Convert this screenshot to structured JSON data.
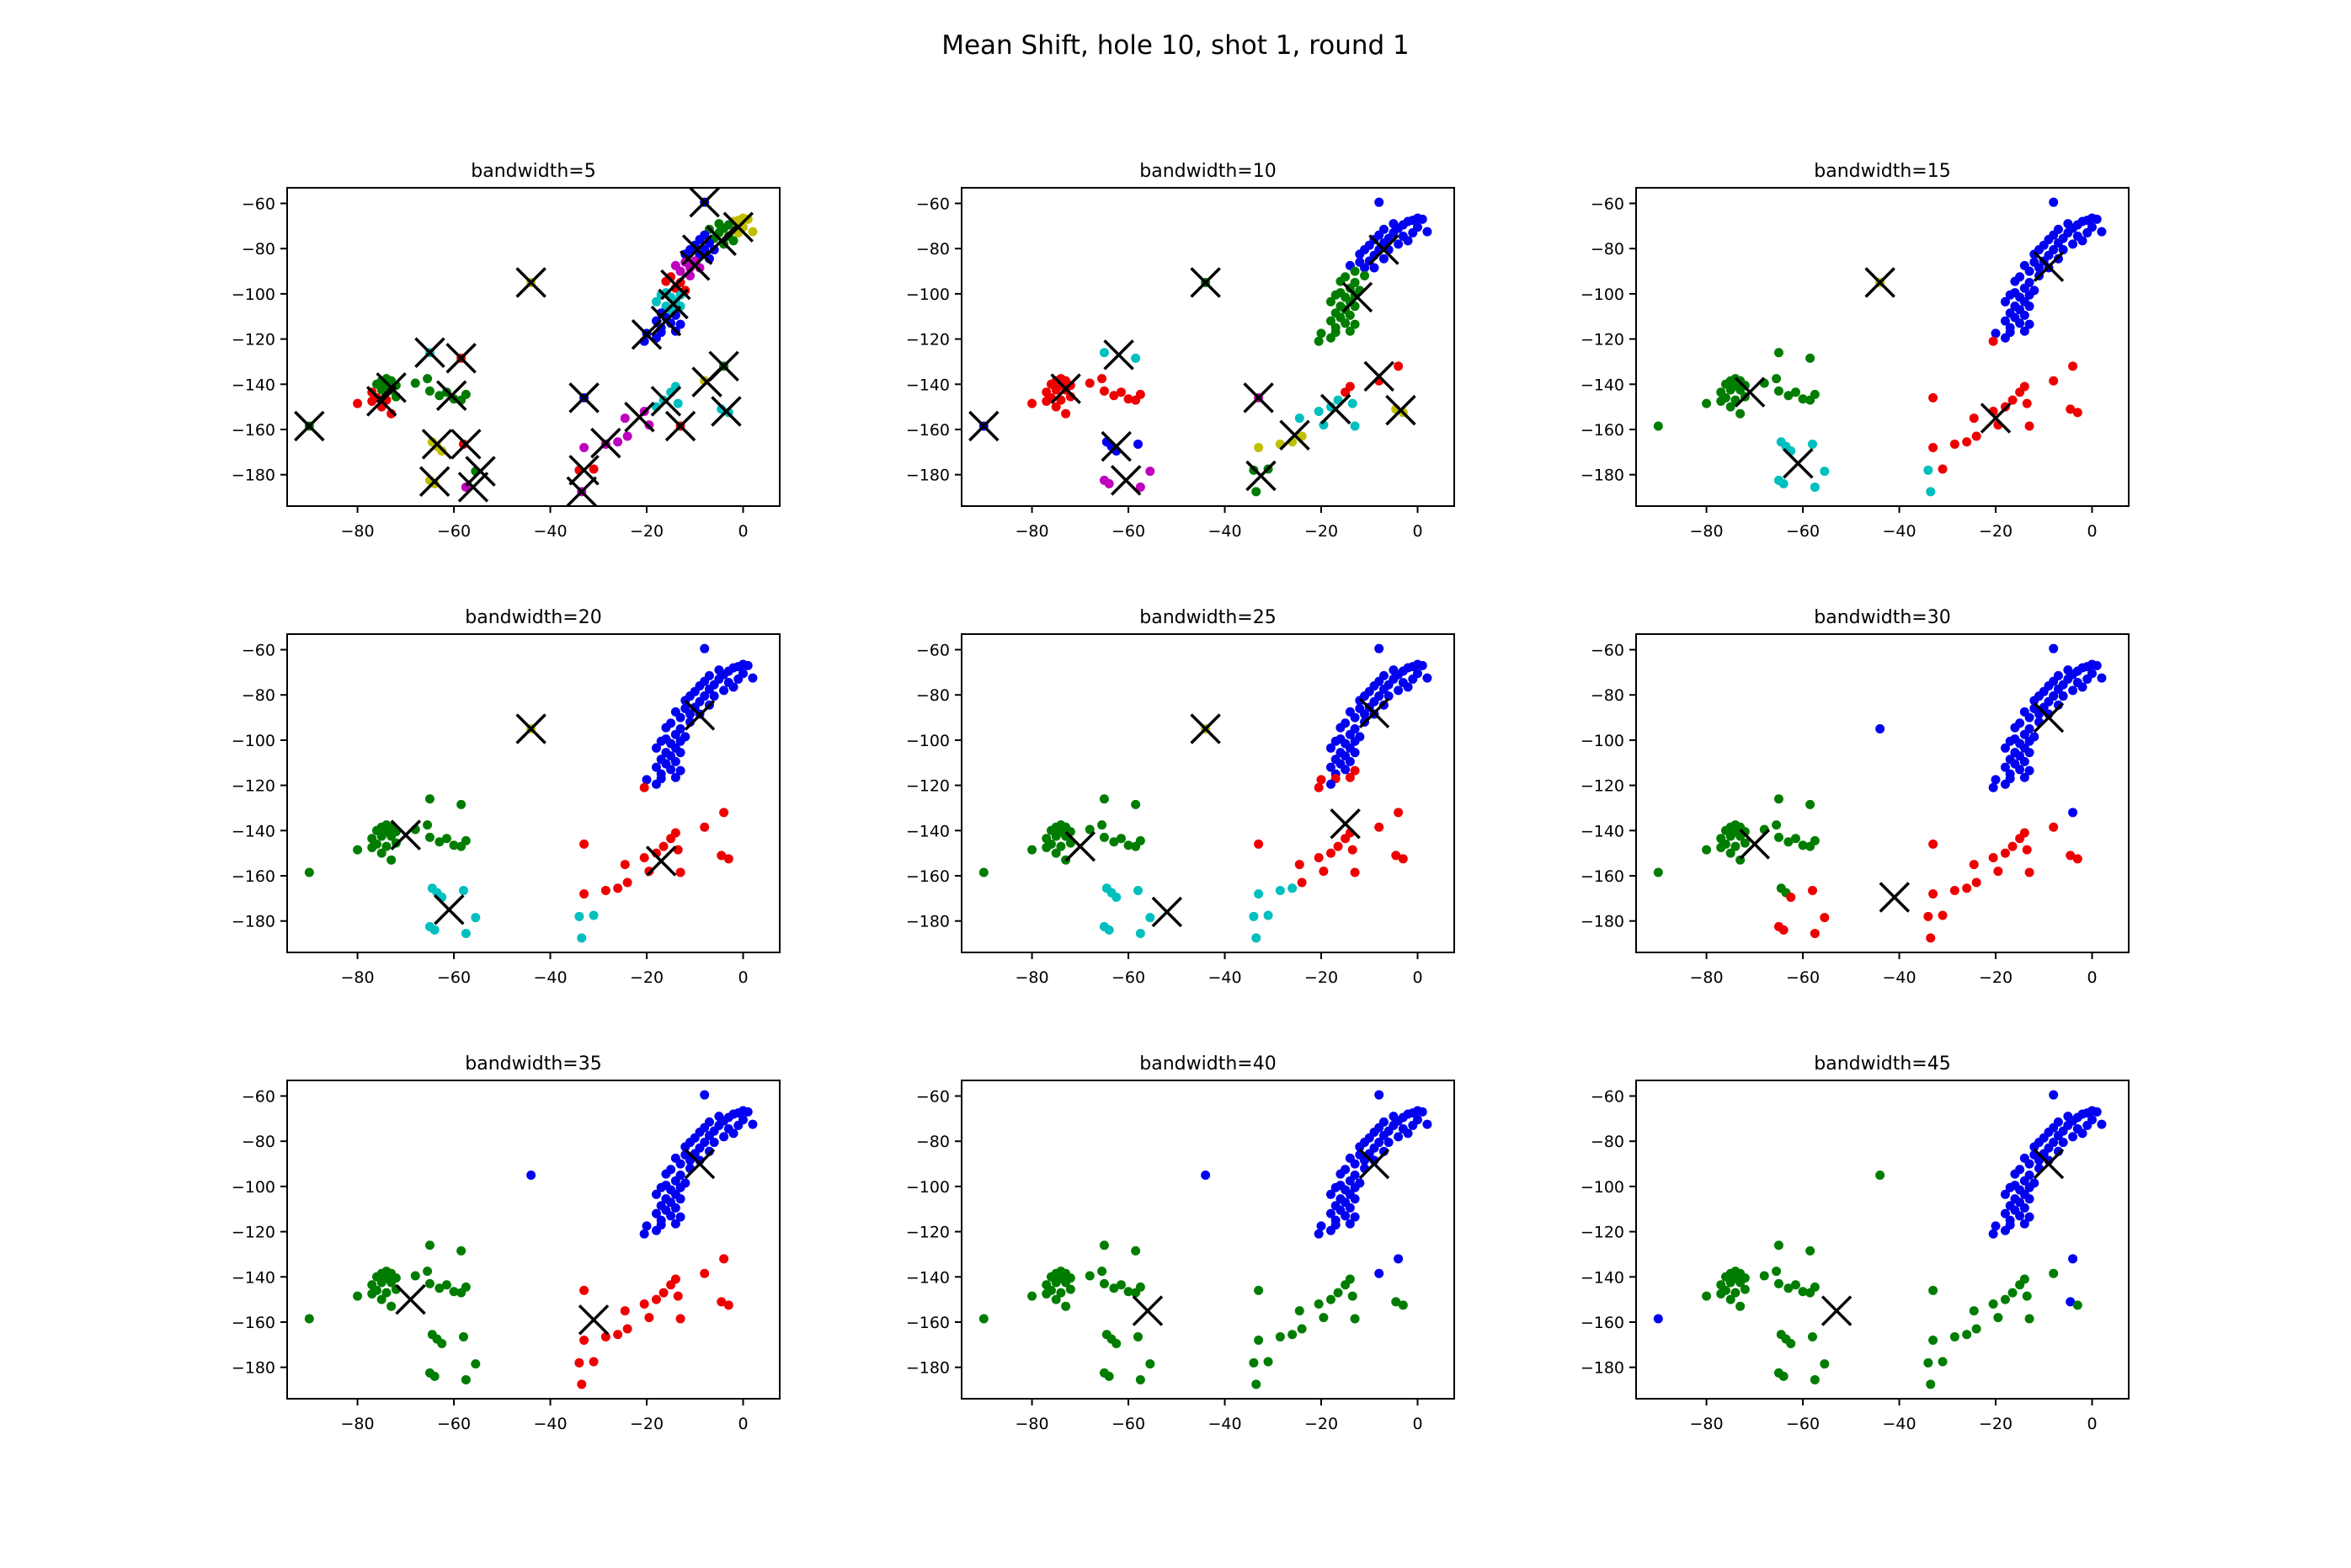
{
  "chart_data": {
    "type": "scatter",
    "title": "Mean Shift, hole 10, shot 1, round 1",
    "grid": false,
    "legend": null,
    "axes": {
      "xlim": [
        -94.6,
        7.6
      ],
      "ylim": [
        -193.9,
        -53.1
      ],
      "xticks": [
        -80,
        -60,
        -40,
        -20,
        0
      ],
      "yticks": [
        -60,
        -80,
        -100,
        -120,
        -140,
        -160,
        -180
      ]
    },
    "colors": {
      "b": "#0202f0",
      "g": "#007d00",
      "r": "#ef0000",
      "c": "#00bfbf",
      "m": "#bf00bf",
      "y": "#bfbf00",
      "center": "#000000"
    },
    "points": [
      [
        -8,
        -59.5
      ],
      [
        1,
        -67
      ],
      [
        -1,
        -67.5
      ],
      [
        0,
        -66.5
      ],
      [
        -2,
        -68
      ],
      [
        2,
        -72.5
      ],
      [
        0,
        -70.5
      ],
      [
        -1,
        -73
      ],
      [
        -3,
        -69.5
      ],
      [
        -4,
        -71
      ],
      [
        -5,
        -69
      ],
      [
        -3,
        -74.5
      ],
      [
        -2,
        -76.5
      ],
      [
        -5,
        -73
      ],
      [
        -6,
        -75.5
      ],
      [
        -4,
        -78
      ],
      [
        -7,
        -71.5
      ],
      [
        -8,
        -74
      ],
      [
        -7,
        -77.5
      ],
      [
        -6,
        -80.5
      ],
      [
        -8,
        -80.5
      ],
      [
        -9,
        -76
      ],
      [
        -10,
        -78.5
      ],
      [
        -9,
        -83
      ],
      [
        -7,
        -84.5
      ],
      [
        -11,
        -80.5
      ],
      [
        -12,
        -82.5
      ],
      [
        -10,
        -85.5
      ],
      [
        -12,
        -86
      ],
      [
        -14,
        -87.5
      ],
      [
        -11,
        -88.5
      ],
      [
        -9,
        -88.5
      ],
      [
        -13,
        -90
      ],
      [
        -11,
        -92
      ],
      [
        -15,
        -92.5
      ],
      [
        -13,
        -95
      ],
      [
        -16,
        -94.5
      ],
      [
        -14,
        -97.5
      ],
      [
        -12,
        -98.5
      ],
      [
        -16,
        -99.5
      ],
      [
        -13,
        -100.5
      ],
      [
        -15,
        -101.5
      ],
      [
        -17,
        -100.5
      ],
      [
        -14,
        -103.5
      ],
      [
        -18,
        -103.5
      ],
      [
        -16,
        -105.5
      ],
      [
        -13,
        -105.5
      ],
      [
        -15,
        -107
      ],
      [
        -17,
        -108.5
      ],
      [
        -14,
        -109.5
      ],
      [
        -16,
        -110.5
      ],
      [
        -18,
        -112
      ],
      [
        -15,
        -113
      ],
      [
        -17,
        -115
      ],
      [
        -13,
        -113.5
      ],
      [
        -14,
        -116.5
      ],
      [
        -17,
        -117
      ],
      [
        -20,
        -117.5
      ],
      [
        -18,
        -119.5
      ],
      [
        -20.5,
        -121
      ],
      [
        -80,
        -148.5
      ],
      [
        -77,
        -143.5
      ],
      [
        -76,
        -140
      ],
      [
        -75,
        -138.5
      ],
      [
        -74,
        -137.5
      ],
      [
        -73,
        -138.5
      ],
      [
        -74,
        -140.5
      ],
      [
        -75,
        -142.5
      ],
      [
        -73,
        -142.5
      ],
      [
        -72,
        -140.5
      ],
      [
        -76,
        -146
      ],
      [
        -74,
        -147
      ],
      [
        -72,
        -145.5
      ],
      [
        -75,
        -150
      ],
      [
        -73,
        -153
      ],
      [
        -77,
        -147.5
      ],
      [
        -68,
        -139.5
      ],
      [
        -65.5,
        -137.5
      ],
      [
        -65,
        -143
      ],
      [
        -63,
        -145
      ],
      [
        -61.5,
        -143.5
      ],
      [
        -60,
        -146.5
      ],
      [
        -57.5,
        -144.5
      ],
      [
        -58.5,
        -147
      ],
      [
        -65,
        -126
      ],
      [
        -58.5,
        -128.5
      ],
      [
        -64.5,
        -165.5
      ],
      [
        -63.5,
        -167.5
      ],
      [
        -62.5,
        -169.5
      ],
      [
        -58,
        -166.5
      ],
      [
        -65,
        -182.5
      ],
      [
        -64,
        -184
      ],
      [
        -57.5,
        -185.5
      ],
      [
        -55.5,
        -178.5
      ],
      [
        -33,
        -146
      ],
      [
        -33,
        -168
      ],
      [
        -34,
        -178
      ],
      [
        -31,
        -177.5
      ],
      [
        -33.5,
        -187.5
      ],
      [
        -28.5,
        -166.5
      ],
      [
        -26,
        -165.5
      ],
      [
        -24.5,
        -155
      ],
      [
        -24,
        -163
      ],
      [
        -20.5,
        -152
      ],
      [
        -19.5,
        -158
      ],
      [
        -18,
        -150
      ],
      [
        -16.5,
        -147
      ],
      [
        -15,
        -143.5
      ],
      [
        -14,
        -141
      ],
      [
        -13.5,
        -148.5
      ],
      [
        -13,
        -158.5
      ],
      [
        -8,
        -138.5
      ],
      [
        -4,
        -132
      ],
      [
        -4.5,
        -151
      ],
      [
        -3,
        -152.5
      ],
      [
        -44,
        -95
      ],
      [
        -90,
        -158.5
      ]
    ],
    "subplots": [
      {
        "title": "bandwidth=5",
        "labels": "byyyyyyygggggggggbbbbbbbbbbmmmmmmmrrrrrcccccccccbbbbbbbbbbbbrrggggggggrrgrrrggggggggcryyyryymgbmrrmmmmmmmcccccrygccyg",
        "centers": [
          [
            -8,
            -59.5
          ],
          [
            -1,
            -70.5
          ],
          [
            -4.5,
            -76.5
          ],
          [
            -9.5,
            -80.5
          ],
          [
            -10,
            -87.5
          ],
          [
            -14,
            -96
          ],
          [
            -14.5,
            -104.5
          ],
          [
            -16,
            -112
          ],
          [
            -20,
            -118
          ],
          [
            -73,
            -141.5
          ],
          [
            -75,
            -147.5
          ],
          [
            -60.5,
            -145
          ],
          [
            -65,
            -126
          ],
          [
            -58.5,
            -128.5
          ],
          [
            -63.5,
            -166.5
          ],
          [
            -57.5,
            -166.5
          ],
          [
            -64,
            -183
          ],
          [
            -56,
            -185.5
          ],
          [
            -54.5,
            -178.5
          ],
          [
            -44,
            -95
          ],
          [
            -90,
            -158.5
          ],
          [
            -33,
            -146
          ],
          [
            -28.5,
            -166
          ],
          [
            -21.5,
            -154.5
          ],
          [
            -33,
            -178
          ],
          [
            -33.5,
            -187.5
          ],
          [
            -16,
            -147.5
          ],
          [
            -13,
            -158.5
          ],
          [
            -7.5,
            -139
          ],
          [
            -4,
            -132
          ],
          [
            -3.5,
            -152
          ]
        ]
      },
      {
        "title": "bandwidth=10",
        "labels": "bbbbbbbbbbbbbbbbbbbbbbbbbbbbbbbbggggggggggggggggggggggggggggrrrrrrrrrrrrrrrrrrrrrrrrccbbbbmmmmmygggyycyccccrrccrryygb",
        "centers": [
          [
            -7,
            -80.5
          ],
          [
            -12.5,
            -101.5
          ],
          [
            -73,
            -142
          ],
          [
            -62,
            -127
          ],
          [
            -62.5,
            -167.5
          ],
          [
            -60.5,
            -182.5
          ],
          [
            -44,
            -95
          ],
          [
            -90,
            -158.5
          ],
          [
            -33,
            -146
          ],
          [
            -32.5,
            -180.5
          ],
          [
            -25.5,
            -162.5
          ],
          [
            -17,
            -151
          ],
          [
            -8,
            -136.5
          ],
          [
            -3.5,
            -151.5
          ]
        ]
      },
      {
        "title": "bandwidth=15",
        "labels": "bbbbbbbbbbbbbbbbbbbbbbbbbbbbbbbbbbbbbbbbbbbbbbbbbbbbbbbbbbbrggggggggggggggggggggggggggccccccccrrcrcrrrrrrrrrrrrrrrryg",
        "centers": [
          [
            -9,
            -88
          ],
          [
            -71,
            -143.5
          ],
          [
            -20,
            -155
          ],
          [
            -61,
            -175
          ],
          [
            -44,
            -95
          ]
        ]
      },
      {
        "title": "bandwidth=20",
        "labels": "bbbbbbbbbbbbbbbbbbbbbbbbbbbbbbbbbbbbbbbbbbbbbbbbbbbbbbbbbbbrggggggggggggggggggggggggggccccccccrrcccrrrrrrrrrrrrrrrryg",
        "centers": [
          [
            -9,
            -89
          ],
          [
            -70,
            -142
          ],
          [
            -17,
            -153.5
          ],
          [
            -61,
            -175
          ],
          [
            -44,
            -95
          ]
        ]
      },
      {
        "title": "bandwidth=25",
        "labels": "bbbbbbbbbbbbbbbbbbbbbbbbbbbbbbbbbbbbbbbbbbbbbbbbbbbbbbrrrrbrggggggggggggggggggggggggggccccccccrccccccrrrrrrrrrrrrrryg",
        "centers": [
          [
            -9,
            -88
          ],
          [
            -70,
            -147
          ],
          [
            -15,
            -137
          ],
          [
            -52,
            -176
          ],
          [
            -44,
            -95
          ]
        ]
      },
      {
        "title": "bandwidth=30",
        "labels": "bbbbbbbbbbbbbbbbbbbbbbbbbbbbbbbbbbbbbbbbbbbbbbbbbbbbbbbbbbbbggggggggggggggggggggggggggggrrrrrrrrrrrrrrrrrrrrrrrrbrrbg",
        "centers": [
          [
            -9,
            -90
          ],
          [
            -70,
            -146
          ],
          [
            -41,
            -169.5
          ]
        ]
      },
      {
        "title": "bandwidth=35",
        "labels": "bbbbbbbbbbbbbbbbbbbbbbbbbbbbbbbbbbbbbbbbbbbbbbbbbbbbbbbbbbbbggggggggggggggggggggggggggggggggggrrrrrrrrrrrrrrrrrrrrrbg",
        "centers": [
          [
            -9,
            -90
          ],
          [
            -69,
            -150
          ],
          [
            -31,
            -159
          ]
        ]
      },
      {
        "title": "bandwidth=40",
        "labels": "bbbbbbbbbbbbbbbbbbbbbbbbbbbbbbbbbbbbbbbbbbbbbbbbbbbbbbbbbbbbgggggggggggggggggggggggggggggggggggggggggggggggggggbbggbg",
        "centers": [
          [
            -9,
            -90
          ],
          [
            -56,
            -155
          ]
        ]
      },
      {
        "title": "bandwidth=45",
        "labels": "bbbbbbbbbbbbbbbbbbbbbbbbbbbbbbbbbbbbbbbbbbbbbbbbbbbbbbbbbbbbggggggggggggggggggggggggggggggggggggggggggggggggggggbbggbg",
        "centers": [
          [
            -9,
            -90
          ],
          [
            -53,
            -155
          ]
        ]
      }
    ],
    "layout_hints": {
      "marker_radius_px": 5.5,
      "center_marker_half_px": 17,
      "center_marker_stroke_px": 3.5
    }
  }
}
